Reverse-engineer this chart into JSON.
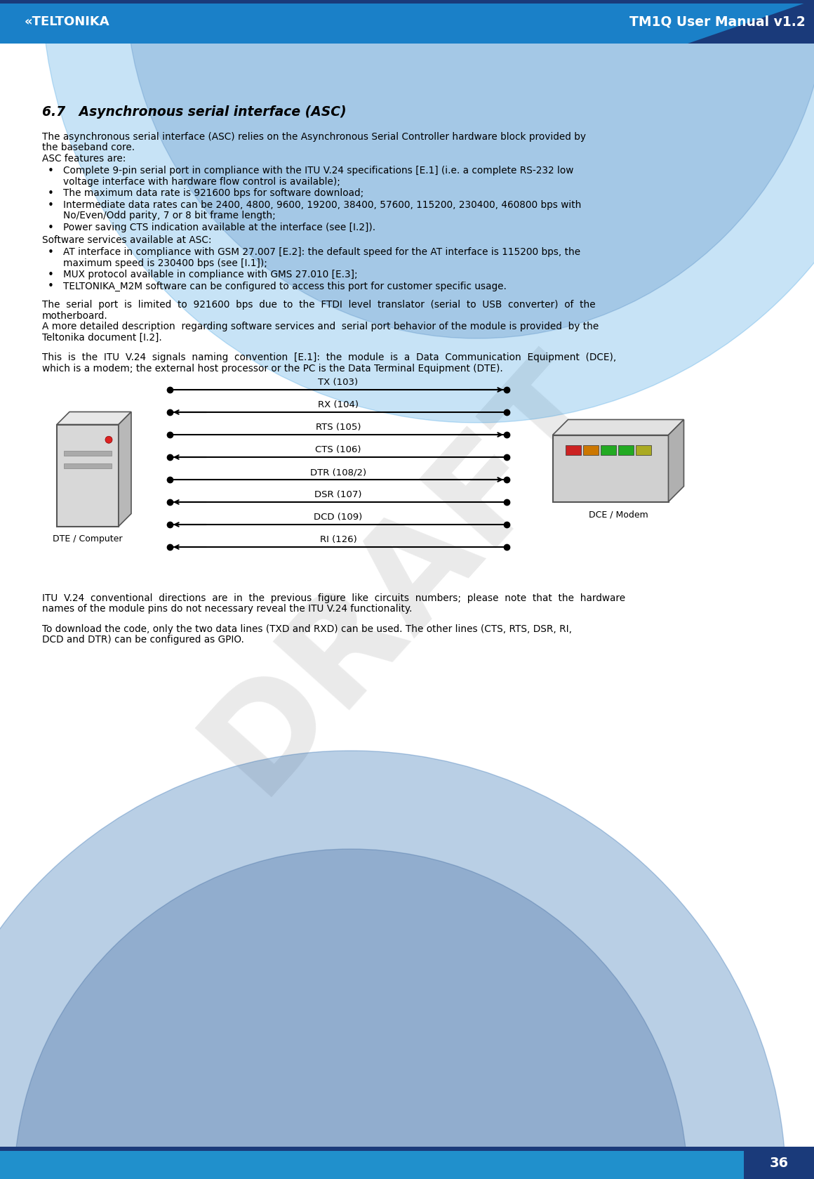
{
  "page_number": "36",
  "header_text": "TM1Q User Manual v1.2",
  "section_title": "6.7   Asynchronous serial interface (ASC)",
  "para1_lines": [
    "The asynchronous serial interface (ASC) relies on the Asynchronous Serial Controller hardware block provided by",
    "the baseband core.",
    "ASC features are:"
  ],
  "bullets1": [
    [
      "Complete 9-pin serial port in compliance with the ITU V.24 specifications [E.1] (i.e. a complete RS-232 low",
      "voltage interface with hardware flow control is available);"
    ],
    [
      "The maximum data rate is 921600 bps for software download;"
    ],
    [
      "Intermediate data rates can be 2400, 4800, 9600, 19200, 38400, 57600, 115200, 230400, 460800 bps with",
      "No/Even/Odd parity, 7 or 8 bit frame length;"
    ],
    [
      "Power saving CTS indication available at the interface (see [I.2])."
    ]
  ],
  "para2_lines": [
    "Software services available at ASC:"
  ],
  "bullets2": [
    [
      "AT interface in compliance with GSM 27.007 [E.2]: the default speed for the AT interface is 115200 bps, the",
      "maximum speed is 230400 bps (see [I.1]);"
    ],
    [
      "MUX protocol available in compliance with GMS 27.010 [E.3];"
    ],
    [
      "TELTONIKA_M2M software can be configured to access this port for customer specific usage."
    ]
  ],
  "para3_lines": [
    "The  serial  port  is  limited  to  921600  bps  due  to  the  FTDI  level  translator  (serial  to  USB  converter)  of  the",
    "motherboard.",
    "A more detailed description  regarding software services and  serial port behavior of the module is provided  by the",
    "Teltonika document [I.2]."
  ],
  "para4_lines": [
    "This  is  the  ITU  V.24  signals  naming  convention  [E.1]:  the  module  is  a  Data  Communication  Equipment  (DCE),",
    "which is a modem; the external host processor or the PC is the Data Terminal Equipment (DTE)."
  ],
  "para5_lines": [
    "ITU  V.24  conventional  directions  are  in  the  previous  figure  like  circuits  numbers;  please  note  that  the  hardware",
    "names of the module pins do not necessary reveal the ITU V.24 functionality."
  ],
  "para6_lines": [
    "To download the code, only the two data lines (TXD and RXD) can be used. The other lines (CTS, RTS, DSR, RI,",
    "DCD and DTR) can be configured as GPIO."
  ],
  "signal_labels": [
    "TX (103)",
    "RX (104)",
    "RTS (105)",
    "CTS (106)",
    "DTR (108/2)",
    "DSR (107)",
    "DCD (109)",
    "RI (126)"
  ],
  "signal_directions": [
    "right",
    "left",
    "right",
    "left",
    "right",
    "left",
    "left",
    "left"
  ],
  "dte_label": "DTE / Computer",
  "dce_label": "DCE / Modem",
  "modem_bar_colors": [
    "#cc2222",
    "#cc7700",
    "#22aa22",
    "#22aa22",
    "#aaaa22"
  ]
}
